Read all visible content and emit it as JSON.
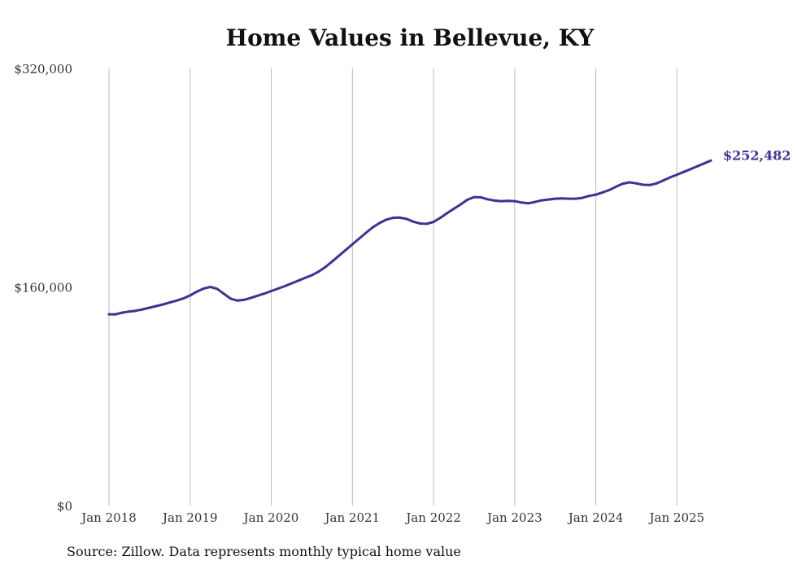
{
  "colors": {
    "line": "#3b3592",
    "grid": "#bbbbbb",
    "text": "#333333"
  },
  "chart_data": {
    "type": "line",
    "title": "Home Values in Bellevue, KY",
    "source": "Source: Zillow. Data represents monthly typical home value",
    "ylim": [
      0,
      320000
    ],
    "y_ticks": [
      {
        "value": 0,
        "label": "$0"
      },
      {
        "value": 160000,
        "label": "$160,000"
      },
      {
        "value": 320000,
        "label": "$320,000"
      }
    ],
    "x_ticks": [
      {
        "value": "2018-01",
        "label": "Jan 2018"
      },
      {
        "value": "2019-01",
        "label": "Jan 2019"
      },
      {
        "value": "2020-01",
        "label": "Jan 2020"
      },
      {
        "value": "2021-01",
        "label": "Jan 2021"
      },
      {
        "value": "2022-01",
        "label": "Jan 2022"
      },
      {
        "value": "2023-01",
        "label": "Jan 2023"
      },
      {
        "value": "2024-01",
        "label": "Jan 2024"
      },
      {
        "value": "2025-01",
        "label": "Jan 2025"
      }
    ],
    "grid": "vertical",
    "end_label": "$252,482",
    "x": [
      "2018-01",
      "2018-02",
      "2018-03",
      "2018-04",
      "2018-05",
      "2018-06",
      "2018-07",
      "2018-08",
      "2018-09",
      "2018-10",
      "2018-11",
      "2018-12",
      "2019-01",
      "2019-02",
      "2019-03",
      "2019-04",
      "2019-05",
      "2019-06",
      "2019-07",
      "2019-08",
      "2019-09",
      "2019-10",
      "2019-11",
      "2019-12",
      "2020-01",
      "2020-02",
      "2020-03",
      "2020-04",
      "2020-05",
      "2020-06",
      "2020-07",
      "2020-08",
      "2020-09",
      "2020-10",
      "2020-11",
      "2020-12",
      "2021-01",
      "2021-02",
      "2021-03",
      "2021-04",
      "2021-05",
      "2021-06",
      "2021-07",
      "2021-08",
      "2021-09",
      "2021-10",
      "2021-11",
      "2021-12",
      "2022-01",
      "2022-02",
      "2022-03",
      "2022-04",
      "2022-05",
      "2022-06",
      "2022-07",
      "2022-08",
      "2022-09",
      "2022-10",
      "2022-11",
      "2022-12",
      "2023-01",
      "2023-02",
      "2023-03",
      "2023-04",
      "2023-05",
      "2023-06",
      "2023-07",
      "2023-08",
      "2023-09",
      "2023-10",
      "2023-11",
      "2023-12",
      "2024-01",
      "2024-02",
      "2024-03",
      "2024-04",
      "2024-05",
      "2024-06",
      "2024-07",
      "2024-08",
      "2024-09",
      "2024-10",
      "2024-11",
      "2024-12",
      "2025-01",
      "2025-02",
      "2025-03",
      "2025-04",
      "2025-05",
      "2025-06"
    ],
    "series": [
      {
        "values": [
          140000,
          140000,
          141200,
          142000,
          142600,
          143600,
          144800,
          146000,
          147200,
          148600,
          150000,
          151600,
          153800,
          156600,
          158800,
          160000,
          158600,
          155000,
          151400,
          150000,
          150600,
          152000,
          153600,
          155200,
          157000,
          158800,
          160600,
          162600,
          164600,
          166600,
          168600,
          171200,
          174600,
          178600,
          182800,
          187000,
          191200,
          195400,
          199600,
          203600,
          206800,
          209200,
          210600,
          210800,
          209800,
          207800,
          206400,
          206200,
          207600,
          210600,
          214000,
          217200,
          220400,
          223800,
          225800,
          225600,
          224200,
          223200,
          222800,
          223000,
          222800,
          221800,
          221200,
          222200,
          223400,
          224000,
          224600,
          224800,
          224600,
          224600,
          225200,
          226600,
          227600,
          229200,
          231000,
          233400,
          235600,
          236600,
          235800,
          234800,
          234600,
          235800,
          238000,
          240200,
          242200,
          244200,
          246200,
          248400,
          250400,
          252482
        ]
      }
    ]
  }
}
